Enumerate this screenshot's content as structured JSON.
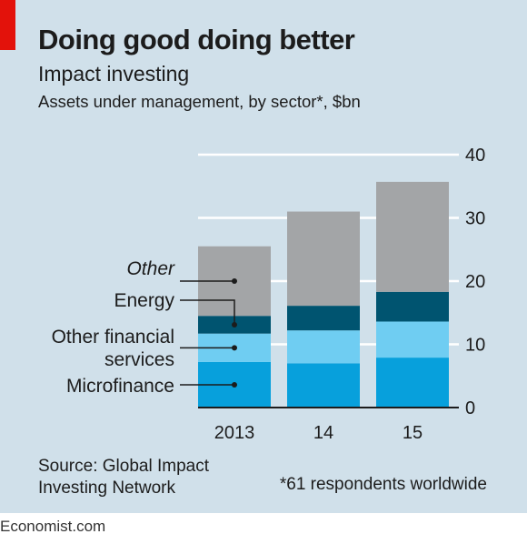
{
  "header": {
    "title": "Doing good doing better",
    "subtitle": "Impact investing",
    "description": "Assets under management, by sector*, $bn"
  },
  "footer": {
    "source_line1": "Source: Global Impact",
    "source_line2": "Investing Network",
    "footnote": "*61 respondents worldwide",
    "brand": "Economist.com"
  },
  "colors": {
    "background": "#d0e0ea",
    "accent": "#e3120b",
    "microfinance": "#07a0dc",
    "other_financial_services": "#6fcdf2",
    "energy": "#005470",
    "other": "#a3a5a7"
  },
  "chart_data": {
    "type": "bar",
    "stacked": true,
    "categories": [
      "2013",
      "14",
      "15"
    ],
    "series": [
      {
        "name": "Microfinance",
        "values": [
          7.2,
          7.0,
          7.9
        ],
        "color": "#07a0dc"
      },
      {
        "name": "Other financial services",
        "values": [
          4.5,
          5.2,
          5.7
        ],
        "color": "#6fcdf2"
      },
      {
        "name": "Energy",
        "values": [
          2.8,
          3.9,
          4.7
        ],
        "color": "#005470"
      },
      {
        "name": "Other",
        "values": [
          11.0,
          14.9,
          17.4
        ],
        "color": "#a3a5a7"
      }
    ],
    "ylim": [
      0,
      40
    ],
    "yticks": [
      0,
      10,
      20,
      30,
      40
    ],
    "y_axis_side": "right",
    "grid": true,
    "legend_placement": "left, inline labels with leader lines",
    "legend_labels": [
      {
        "series": "Other",
        "lines": [
          "Other"
        ],
        "italic": true
      },
      {
        "series": "Energy",
        "lines": [
          "Energy"
        ],
        "italic": false
      },
      {
        "series": "Other financial services",
        "lines": [
          "Other financial",
          "services"
        ],
        "italic": false
      },
      {
        "series": "Microfinance",
        "lines": [
          "Microfinance"
        ],
        "italic": false
      }
    ]
  }
}
